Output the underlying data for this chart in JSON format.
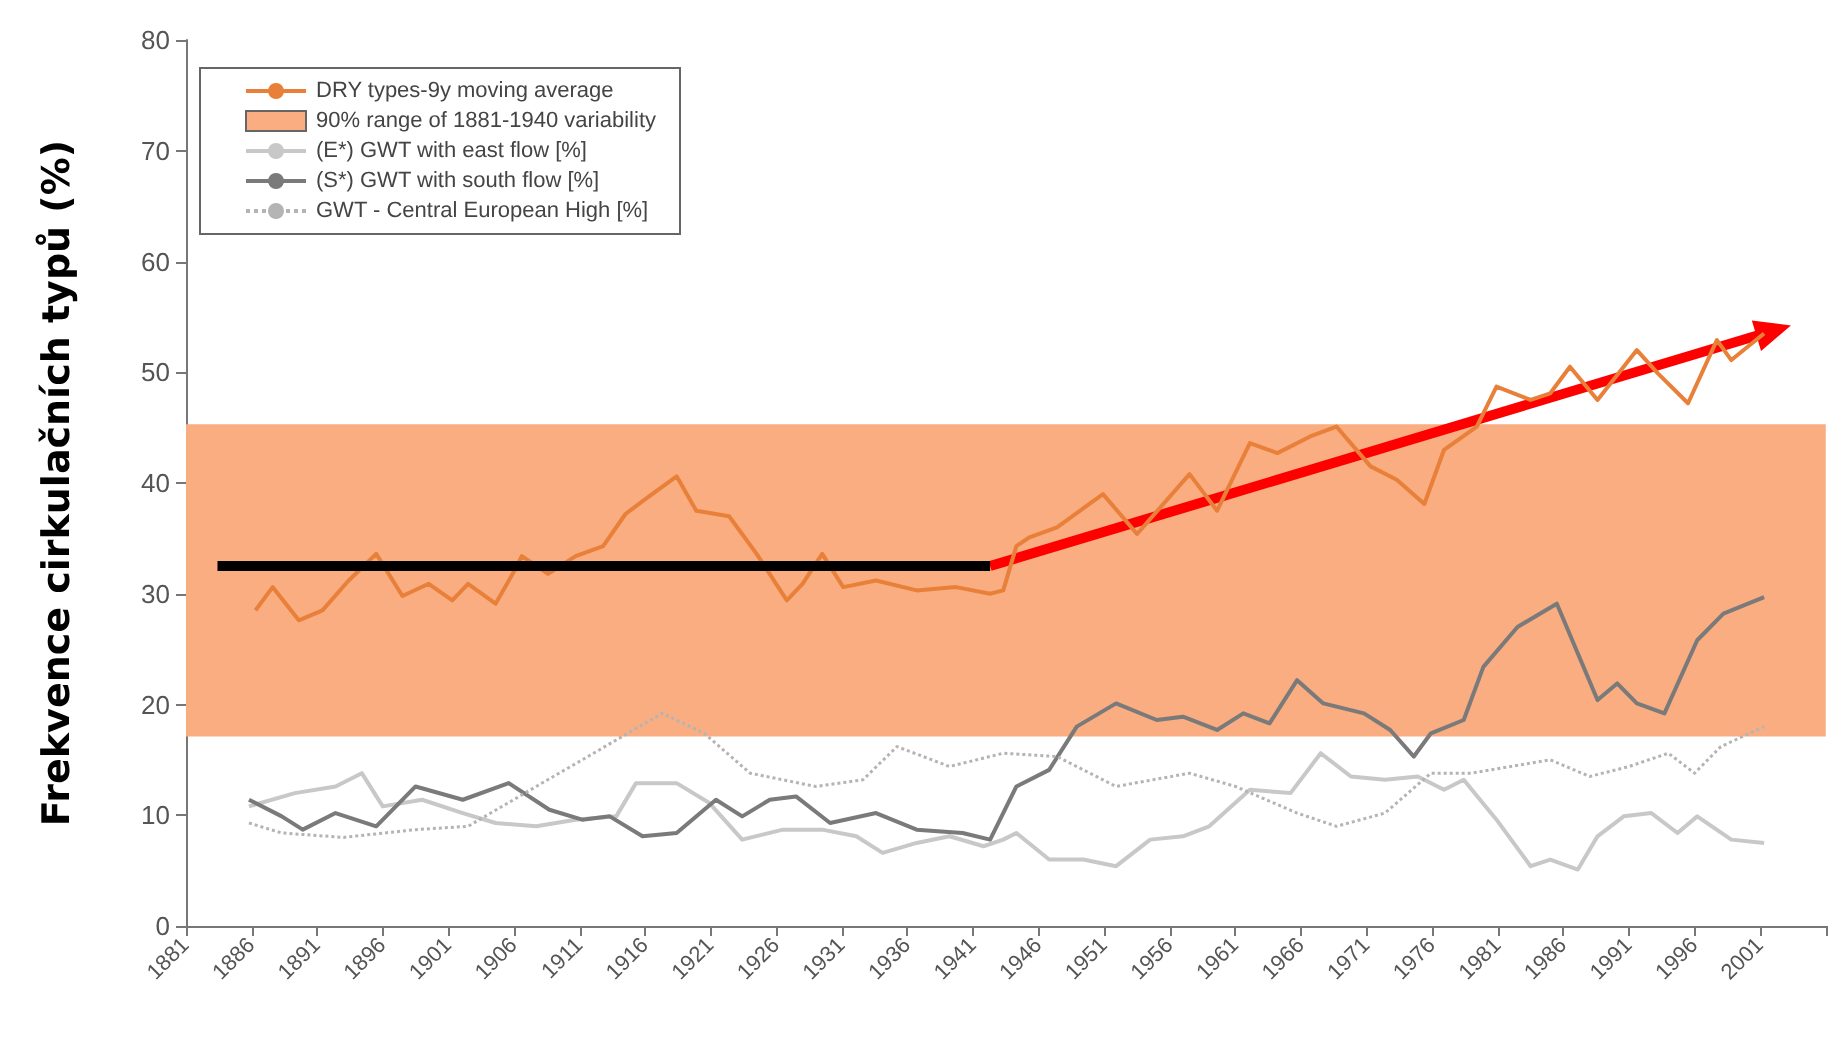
{
  "chart_data": {
    "type": "line",
    "ylabel": "Frekvence cirkulačních typů (%)",
    "xlim": [
      1881,
      2006
    ],
    "xticks": [
      1881,
      1886,
      1891,
      1896,
      1901,
      1906,
      1911,
      1916,
      1921,
      1926,
      1931,
      1936,
      1941,
      1946,
      1951,
      1956,
      1961,
      1966,
      1971,
      1976,
      1981,
      1986,
      1991,
      1996,
      2001,
      {
        "value": 2006,
        "label": null
      }
    ],
    "ylim": [
      0,
      80
    ],
    "yticks": [
      0,
      10,
      20,
      30,
      40,
      50,
      60,
      70,
      80
    ],
    "grid": false,
    "legend": "top left",
    "marker": "none",
    "bands": [
      {
        "axis": "y",
        "from": 17.1,
        "to": 45.3,
        "label": "90% range of 1881-1940 variability",
        "color": "#f9ad80"
      }
    ],
    "series": [
      {
        "name": "DRY types-9y moving average",
        "color": "#e8803a",
        "x": [
          1886.3,
          1887.6,
          1889.6,
          1891.4,
          1893.4,
          1895.5,
          1897.5,
          1899.5,
          1901.3,
          1902.5,
          1904.6,
          1905.9,
          1906.6,
          1908.6,
          1910.7,
          1912.8,
          1914.5,
          1916.3,
          1918.4,
          1919.9,
          1922.4,
          1924.5,
          1926.8,
          1928,
          1929.5,
          1931.1,
          1933.6,
          1936.7,
          1939.7,
          1942.3,
          1943.3,
          1944.3,
          1945.3,
          1947.4,
          1950.9,
          1953.5,
          1957.5,
          1959.6,
          1962.1,
          1964.2,
          1966.7,
          1968.7,
          1971.3,
          1973.3,
          1975.4,
          1976.9,
          1979.4,
          1980.9,
          1983.5,
          1985,
          1986.5,
          1988.6,
          1991.6,
          1993.2,
          1995.5,
          1997.7,
          1998.8,
          2001.3
        ],
        "values": [
          28.5,
          30.6,
          27.6,
          28.5,
          31.2,
          33.6,
          29.8,
          30.9,
          29.4,
          30.9,
          29.1,
          31.8,
          33.4,
          31.8,
          33.4,
          34.3,
          37.2,
          38.8,
          40.6,
          37.5,
          37,
          33.6,
          29.4,
          30.9,
          33.6,
          30.6,
          31.2,
          30.3,
          30.6,
          30,
          30.3,
          34.3,
          35.1,
          36,
          39,
          35.4,
          40.8,
          37.5,
          43.6,
          42.7,
          44.2,
          45.1,
          41.5,
          40.3,
          38.1,
          43,
          45.1,
          48.7,
          47.5,
          48.1,
          50.5,
          47.5,
          52,
          49.9,
          47.2,
          52.9,
          51.1,
          53.5
        ]
      },
      {
        "name": "(E*) GWT with east flow [%]",
        "color": "#c8c8c8",
        "x": [
          1885.8,
          1889.3,
          1892.4,
          1894.4,
          1896,
          1899,
          1902.1,
          1904.6,
          1907.7,
          1910.7,
          1913.8,
          1915.3,
          1918.4,
          1920.9,
          1923.4,
          1926.5,
          1929.5,
          1932.1,
          1934.1,
          1936.7,
          1939.2,
          1941.8,
          1943.3,
          1944.3,
          1946.8,
          1949.4,
          1951.9,
          1954.5,
          1957,
          1959,
          1962.1,
          1965.2,
          1967.5,
          1969.8,
          1972.4,
          1974.9,
          1976.9,
          1978.4,
          1980.9,
          1983.5,
          1985,
          1987.1,
          1988.6,
          1990.6,
          1992.7,
          1994.7,
          1996.2,
          1998.8,
          2001.3
        ],
        "values": [
          10.8,
          12,
          12.6,
          13.8,
          10.8,
          11.4,
          10.2,
          9.3,
          9,
          9.6,
          9.9,
          12.9,
          12.9,
          11.1,
          7.8,
          8.7,
          8.7,
          8.1,
          6.6,
          7.5,
          8.1,
          7.2,
          7.8,
          8.4,
          6,
          6,
          5.4,
          7.8,
          8.1,
          9,
          12.3,
          12,
          15.6,
          13.5,
          13.2,
          13.5,
          12.3,
          13.2,
          9.6,
          5.4,
          6,
          5.1,
          8.1,
          9.9,
          10.2,
          8.4,
          9.9,
          7.8,
          7.5
        ]
      },
      {
        "name": "(S*) GWT with south flow [%]",
        "color": "#7a7a7a",
        "x": [
          1885.8,
          1888.3,
          1889.9,
          1892.4,
          1895.5,
          1898.5,
          1902.1,
          1905.6,
          1908.7,
          1911.2,
          1913.3,
          1915.8,
          1918.4,
          1921.4,
          1923.4,
          1925.5,
          1927.5,
          1930.1,
          1933.6,
          1936.7,
          1940.2,
          1942.3,
          1944.3,
          1946.8,
          1948.9,
          1951.9,
          1955,
          1957,
          1959.6,
          1961.6,
          1963.6,
          1965.7,
          1967.7,
          1970.8,
          1972.8,
          1974.6,
          1975.9,
          1978.4,
          1979.9,
          1982.5,
          1985.5,
          1988.6,
          1990.1,
          1991.6,
          1993.7,
          1996.2,
          1998.2,
          2001.3
        ],
        "values": [
          11.4,
          9.9,
          8.7,
          10.2,
          9,
          12.6,
          11.4,
          12.9,
          10.5,
          9.6,
          9.9,
          8.1,
          8.4,
          11.4,
          9.9,
          11.4,
          11.7,
          9.3,
          10.2,
          8.7,
          8.4,
          7.8,
          12.6,
          14.1,
          18,
          20.1,
          18.6,
          18.9,
          17.7,
          19.2,
          18.3,
          22.2,
          20.1,
          19.2,
          17.7,
          15.3,
          17.4,
          18.6,
          23.4,
          27,
          29.1,
          20.4,
          21.9,
          20.1,
          19.2,
          25.8,
          28.2,
          29.7
        ]
      },
      {
        "name": "GWT - Central European High [%]",
        "color": "#b4b4b4",
        "line_style": "dotted",
        "x": [
          1885.8,
          1888.3,
          1893,
          1898.5,
          1902.5,
          1907.7,
          1911.2,
          1913.8,
          1917.3,
          1920.5,
          1924,
          1929,
          1932.6,
          1935.2,
          1939.2,
          1943.3,
          1947.4,
          1951.9,
          1957.5,
          1961,
          1965.7,
          1968.7,
          1972.4,
          1975.9,
          1979,
          1982,
          1985,
          1988,
          1991,
          1994,
          1996,
          1998,
          2001.3
        ],
        "values": [
          9.3,
          8.4,
          8,
          8.7,
          9,
          12.6,
          15,
          16.8,
          19.2,
          17.4,
          13.8,
          12.6,
          13.2,
          16.2,
          14.4,
          15.6,
          15.3,
          12.6,
          13.8,
          12.6,
          10.2,
          9,
          10.2,
          13.8,
          13.8,
          14.4,
          15,
          13.5,
          14.4,
          15.6,
          13.8,
          16.2,
          18
        ]
      },
      {
        "color": "#000000",
        "x": [
          1883.4,
          1942.3
        ],
        "values": [
          32.5,
          32.5
        ]
      }
    ]
  }
}
